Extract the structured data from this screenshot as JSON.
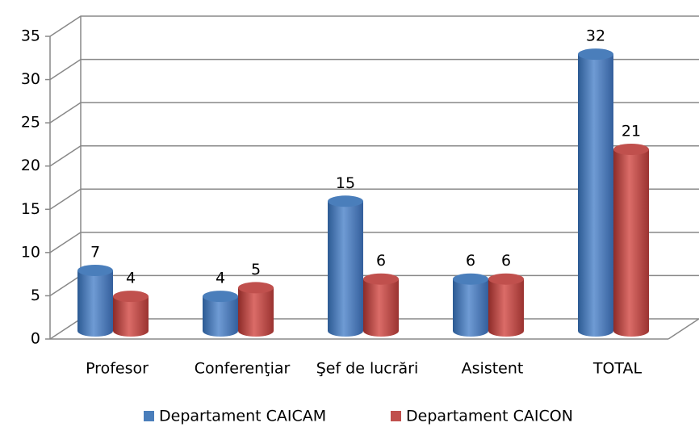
{
  "chart_data": {
    "type": "bar",
    "categories": [
      "Profesor",
      "Conferenţiar",
      "Şef de lucrări",
      "Asistent",
      "TOTAL"
    ],
    "series": [
      {
        "name": "Departament CAICAM",
        "color": "#4a7ebb",
        "values": [
          7,
          4,
          15,
          6,
          32
        ]
      },
      {
        "name": "Departament CAICON",
        "color": "#c0504d",
        "values": [
          4,
          5,
          6,
          6,
          21
        ]
      }
    ],
    "ylim": [
      0,
      35
    ],
    "yticks": [
      0,
      5,
      10,
      15,
      20,
      25,
      30,
      35
    ],
    "grid": true,
    "legend": "bottom"
  }
}
